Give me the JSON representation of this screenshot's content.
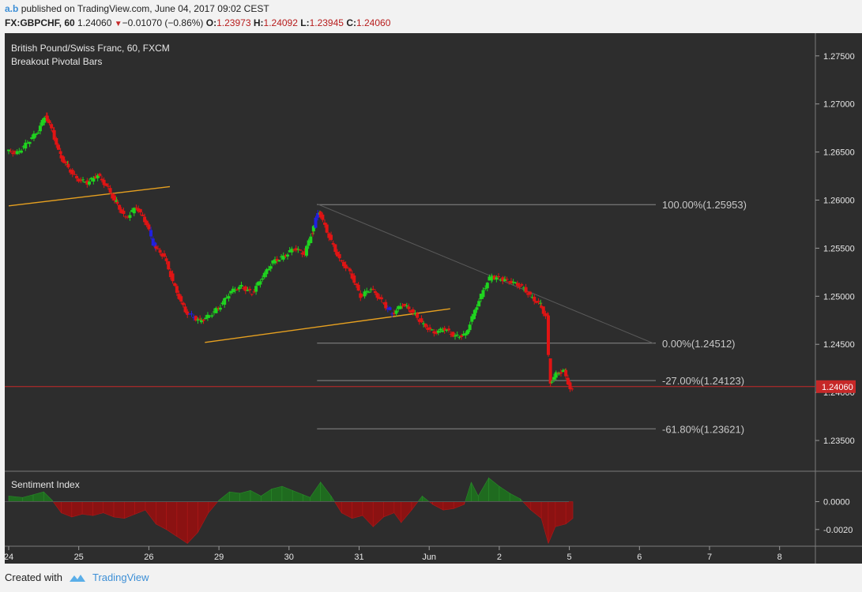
{
  "header": {
    "author": "a.b",
    "published_text": "published on TradingView.com, June 04, 2017 09:02 CEST",
    "symbol": "FX:GBPCHF, 60",
    "last": "1.24060",
    "change": "−0.01070 (−0.86%)",
    "o_label": "O:",
    "o": "1.23973",
    "h_label": "H:",
    "h": "1.24092",
    "l_label": "L:",
    "l": "1.23945",
    "c_label": "C:",
    "c": "1.24060"
  },
  "legend": {
    "title": "British Pound/Swiss Franc, 60, FXCM",
    "indicator": "Breakout Pivotal Bars",
    "sub_title": "Sentiment Index"
  },
  "footer": {
    "created": "Created with",
    "brand": "TradingView"
  },
  "colors": {
    "bull": "#1fd41f",
    "bear": "#e01414",
    "pivot": "#2020e0",
    "trend": "#e6a020",
    "price_line": "#c62828",
    "bg": "#2d2d2d"
  },
  "chart_data": [
    {
      "type": "candlestick",
      "x_labels": [
        "24",
        "25",
        "26",
        "29",
        "30",
        "31",
        "Jun",
        "2",
        "5",
        "6",
        "7",
        "8"
      ],
      "y_ticks": [
        "1.27500",
        "1.27000",
        "1.26500",
        "1.26000",
        "1.25500",
        "1.25000",
        "1.24500",
        "1.24000",
        "1.23500"
      ],
      "ylim": [
        1.2318,
        1.2772
      ],
      "last_price": "1.24060",
      "fib_levels": [
        {
          "label": "100.00%(1.25953)",
          "price": 1.25953
        },
        {
          "label": "0.00%(1.24512)",
          "price": 1.24512
        },
        {
          "label": "-27.00%(1.24123)",
          "price": 1.24123
        },
        {
          "label": "-61.80%(1.23621)",
          "price": 1.23621
        }
      ],
      "trendlines": [
        {
          "from": [
            0.0,
            1.2594
          ],
          "to": [
            2.3,
            1.2614
          ],
          "style": "solid"
        },
        {
          "from": [
            2.8,
            1.2452
          ],
          "to": [
            6.3,
            1.2487
          ],
          "style": "solid"
        },
        {
          "from": [
            4.4,
            1.2596
          ],
          "to": [
            9.2,
            1.2451
          ],
          "style": "thin"
        }
      ],
      "series": [
        {
          "x": 0.0,
          "v": 1.2651
        },
        {
          "x": 0.15,
          "v": 1.2649
        },
        {
          "x": 0.3,
          "v": 1.266
        },
        {
          "x": 0.45,
          "v": 1.2672
        },
        {
          "x": 0.55,
          "v": 1.2688
        },
        {
          "x": 0.65,
          "v": 1.2672
        },
        {
          "x": 0.75,
          "v": 1.2648
        },
        {
          "x": 0.85,
          "v": 1.2636
        },
        {
          "x": 1.0,
          "v": 1.2622
        },
        {
          "x": 1.15,
          "v": 1.2618
        },
        {
          "x": 1.3,
          "v": 1.2626
        },
        {
          "x": 1.45,
          "v": 1.2612
        },
        {
          "x": 1.55,
          "v": 1.2598
        },
        {
          "x": 1.7,
          "v": 1.2581
        },
        {
          "x": 1.85,
          "v": 1.2593
        },
        {
          "x": 2.0,
          "v": 1.2575
        },
        {
          "x": 2.1,
          "v": 1.2552
        },
        {
          "x": 2.25,
          "v": 1.2541
        },
        {
          "x": 2.4,
          "v": 1.2509
        },
        {
          "x": 2.55,
          "v": 1.2484
        },
        {
          "x": 2.75,
          "v": 1.2474
        },
        {
          "x": 2.9,
          "v": 1.248
        },
        {
          "x": 3.05,
          "v": 1.249
        },
        {
          "x": 3.2,
          "v": 1.2505
        },
        {
          "x": 3.35,
          "v": 1.251
        },
        {
          "x": 3.5,
          "v": 1.2503
        },
        {
          "x": 3.65,
          "v": 1.252
        },
        {
          "x": 3.8,
          "v": 1.2536
        },
        {
          "x": 3.95,
          "v": 1.2541
        },
        {
          "x": 4.1,
          "v": 1.255
        },
        {
          "x": 4.25,
          "v": 1.2544
        },
        {
          "x": 4.35,
          "v": 1.2566
        },
        {
          "x": 4.45,
          "v": 1.2589
        },
        {
          "x": 4.6,
          "v": 1.2562
        },
        {
          "x": 4.75,
          "v": 1.2538
        },
        {
          "x": 4.9,
          "v": 1.2525
        },
        {
          "x": 5.05,
          "v": 1.25
        },
        {
          "x": 5.2,
          "v": 1.2508
        },
        {
          "x": 5.35,
          "v": 1.2495
        },
        {
          "x": 5.5,
          "v": 1.2481
        },
        {
          "x": 5.65,
          "v": 1.2492
        },
        {
          "x": 5.8,
          "v": 1.2483
        },
        {
          "x": 5.95,
          "v": 1.247
        },
        {
          "x": 6.1,
          "v": 1.2462
        },
        {
          "x": 6.25,
          "v": 1.2466
        },
        {
          "x": 6.4,
          "v": 1.2458
        },
        {
          "x": 6.55,
          "v": 1.246
        },
        {
          "x": 6.65,
          "v": 1.248
        },
        {
          "x": 6.8,
          "v": 1.2506
        },
        {
          "x": 6.9,
          "v": 1.252
        },
        {
          "x": 7.05,
          "v": 1.2518
        },
        {
          "x": 7.2,
          "v": 1.2515
        },
        {
          "x": 7.35,
          "v": 1.251
        },
        {
          "x": 7.5,
          "v": 1.2498
        },
        {
          "x": 7.6,
          "v": 1.2492
        },
        {
          "x": 7.7,
          "v": 1.2478
        },
        {
          "x": 7.75,
          "v": 1.241
        },
        {
          "x": 7.85,
          "v": 1.242
        },
        {
          "x": 7.95,
          "v": 1.2422
        },
        {
          "x": 8.05,
          "v": 1.2402
        }
      ]
    },
    {
      "type": "area",
      "title": "Sentiment Index",
      "y_ticks": [
        "0.0000",
        "-0.0020"
      ],
      "ylim": [
        -0.0032,
        0.0019
      ],
      "series": [
        {
          "x": 0.0,
          "v": 0.0004
        },
        {
          "x": 0.2,
          "v": 0.0003
        },
        {
          "x": 0.35,
          "v": 0.0005
        },
        {
          "x": 0.5,
          "v": 0.0007
        },
        {
          "x": 0.62,
          "v": 0.0001
        },
        {
          "x": 0.75,
          "v": -0.0008
        },
        {
          "x": 0.9,
          "v": -0.0011
        },
        {
          "x": 1.05,
          "v": -0.0009
        },
        {
          "x": 1.2,
          "v": -0.001
        },
        {
          "x": 1.35,
          "v": -0.0008
        },
        {
          "x": 1.5,
          "v": -0.0011
        },
        {
          "x": 1.65,
          "v": -0.0012
        },
        {
          "x": 1.8,
          "v": -0.0009
        },
        {
          "x": 1.95,
          "v": -0.0006
        },
        {
          "x": 2.1,
          "v": -0.0016
        },
        {
          "x": 2.25,
          "v": -0.002
        },
        {
          "x": 2.4,
          "v": -0.0025
        },
        {
          "x": 2.55,
          "v": -0.003
        },
        {
          "x": 2.7,
          "v": -0.0022
        },
        {
          "x": 2.85,
          "v": -0.0008
        },
        {
          "x": 3.0,
          "v": 0.0001
        },
        {
          "x": 3.15,
          "v": 0.0007
        },
        {
          "x": 3.3,
          "v": 0.0006
        },
        {
          "x": 3.45,
          "v": 0.0008
        },
        {
          "x": 3.6,
          "v": 0.0004
        },
        {
          "x": 3.75,
          "v": 0.0009
        },
        {
          "x": 3.9,
          "v": 0.0011
        },
        {
          "x": 4.05,
          "v": 0.0008
        },
        {
          "x": 4.2,
          "v": 0.0005
        },
        {
          "x": 4.3,
          "v": 0.0003
        },
        {
          "x": 4.45,
          "v": 0.0014
        },
        {
          "x": 4.6,
          "v": 0.0004
        },
        {
          "x": 4.75,
          "v": -0.0008
        },
        {
          "x": 4.9,
          "v": -0.0012
        },
        {
          "x": 5.05,
          "v": -0.001
        },
        {
          "x": 5.2,
          "v": -0.0018
        },
        {
          "x": 5.35,
          "v": -0.0011
        },
        {
          "x": 5.5,
          "v": -0.0008
        },
        {
          "x": 5.6,
          "v": -0.0015
        },
        {
          "x": 5.75,
          "v": -0.0006
        },
        {
          "x": 5.9,
          "v": 0.0004
        },
        {
          "x": 6.05,
          "v": -0.0002
        },
        {
          "x": 6.2,
          "v": -0.0006
        },
        {
          "x": 6.35,
          "v": -0.0005
        },
        {
          "x": 6.5,
          "v": -0.0002
        },
        {
          "x": 6.6,
          "v": 0.0014
        },
        {
          "x": 6.7,
          "v": 0.0004
        },
        {
          "x": 6.85,
          "v": 0.0017
        },
        {
          "x": 7.0,
          "v": 0.0011
        },
        {
          "x": 7.15,
          "v": 0.0006
        },
        {
          "x": 7.3,
          "v": 0.0002
        },
        {
          "x": 7.45,
          "v": -0.0006
        },
        {
          "x": 7.6,
          "v": -0.0012
        },
        {
          "x": 7.7,
          "v": -0.003
        },
        {
          "x": 7.8,
          "v": -0.0018
        },
        {
          "x": 7.95,
          "v": -0.0016
        },
        {
          "x": 8.05,
          "v": -0.0012
        }
      ]
    }
  ]
}
